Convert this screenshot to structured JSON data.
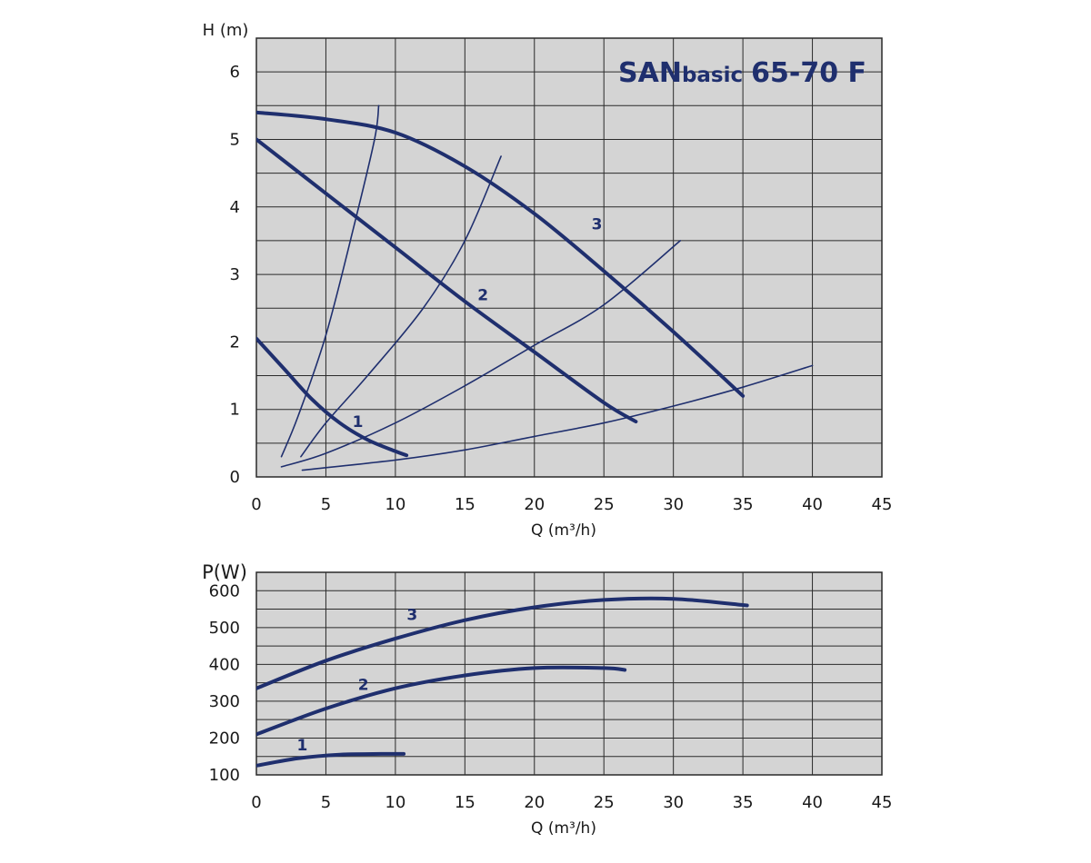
{
  "colors": {
    "curve": "#1f2f6e",
    "plot_bg": "#d4d4d4",
    "grid": "#2a2a2a",
    "title": "#1f2f6e"
  },
  "chart_data": [
    {
      "type": "line",
      "title_main": "SAN",
      "title_mid": "basic",
      "title_end": "65-70 F",
      "ylabel": "H (m)",
      "xlabel": "Q (m³/h)",
      "xlim": [
        0,
        45
      ],
      "ylim": [
        0,
        6.5
      ],
      "xticks": [
        0,
        5,
        10,
        15,
        20,
        25,
        30,
        35,
        40,
        45
      ],
      "yticks": [
        0,
        1,
        2,
        3,
        4,
        5,
        6
      ],
      "grid": true,
      "series": [
        {
          "name": "1",
          "role": "pump",
          "x": [
            0,
            2,
            4,
            6,
            8,
            10,
            10.8
          ],
          "y": [
            2.05,
            1.6,
            1.15,
            0.8,
            0.55,
            0.38,
            0.32
          ]
        },
        {
          "name": "2",
          "role": "pump",
          "x": [
            0,
            5,
            10,
            15,
            20,
            25,
            27.3
          ],
          "y": [
            5.0,
            4.2,
            3.4,
            2.6,
            1.85,
            1.1,
            0.82
          ]
        },
        {
          "name": "3",
          "role": "pump",
          "x": [
            0,
            5,
            10,
            15,
            20,
            25,
            30,
            35
          ],
          "y": [
            5.4,
            5.3,
            5.1,
            4.6,
            3.9,
            3.05,
            2.15,
            1.2
          ]
        },
        {
          "name": "",
          "role": "system",
          "x": [
            1.8,
            3,
            5,
            7,
            8.5,
            8.8
          ],
          "y": [
            0.3,
            0.9,
            2.1,
            3.7,
            5.0,
            5.5
          ]
        },
        {
          "name": "",
          "role": "system",
          "x": [
            3.2,
            5,
            8,
            12,
            15,
            17.6
          ],
          "y": [
            0.3,
            0.8,
            1.5,
            2.5,
            3.5,
            4.75
          ]
        },
        {
          "name": "",
          "role": "system",
          "x": [
            1.8,
            5,
            10,
            15,
            20,
            25,
            30.5
          ],
          "y": [
            0.15,
            0.35,
            0.8,
            1.35,
            1.95,
            2.55,
            3.5
          ]
        },
        {
          "name": "",
          "role": "system",
          "x": [
            3.3,
            10,
            15,
            20,
            25,
            30,
            35,
            40
          ],
          "y": [
            0.1,
            0.25,
            0.4,
            0.6,
            0.8,
            1.05,
            1.33,
            1.65
          ]
        }
      ],
      "annotations": [
        {
          "text": "1",
          "x": 7.3,
          "y": 0.82
        },
        {
          "text": "2",
          "x": 16.3,
          "y": 2.7
        },
        {
          "text": "3",
          "x": 24.5,
          "y": 3.75
        }
      ]
    },
    {
      "type": "line",
      "ylabel": "P(W)",
      "xlabel": "Q (m³/h)",
      "xlim": [
        0,
        45
      ],
      "ylim": [
        100,
        650
      ],
      "xticks": [
        0,
        5,
        10,
        15,
        20,
        25,
        30,
        35,
        40,
        45
      ],
      "yticks": [
        100,
        200,
        300,
        400,
        500,
        600
      ],
      "grid": true,
      "series": [
        {
          "name": "1",
          "x": [
            0,
            3,
            6,
            9,
            10.6
          ],
          "y": [
            125,
            145,
            155,
            157,
            157
          ]
        },
        {
          "name": "2",
          "x": [
            0,
            5,
            10,
            15,
            20,
            25,
            26.5
          ],
          "y": [
            210,
            280,
            335,
            370,
            390,
            390,
            385
          ]
        },
        {
          "name": "3",
          "x": [
            0,
            5,
            10,
            15,
            20,
            25,
            30,
            35.3
          ],
          "y": [
            335,
            410,
            470,
            520,
            555,
            575,
            578,
            560
          ]
        }
      ],
      "annotations": [
        {
          "text": "1",
          "x": 3.3,
          "y": 182
        },
        {
          "text": "2",
          "x": 7.7,
          "y": 345
        },
        {
          "text": "3",
          "x": 11.2,
          "y": 535
        }
      ]
    }
  ]
}
